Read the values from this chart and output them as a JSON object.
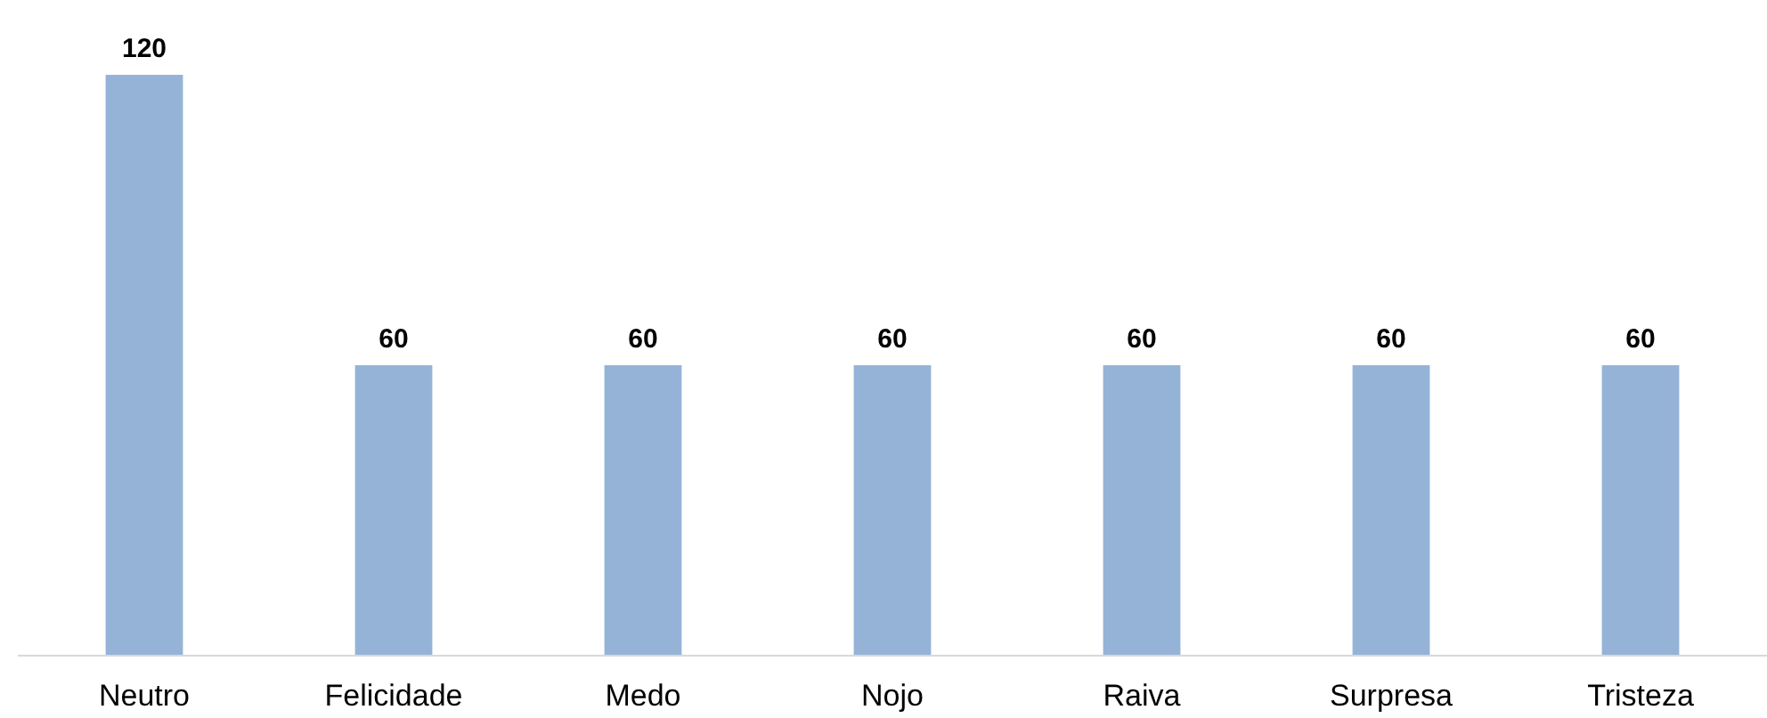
{
  "chart_data": {
    "type": "bar",
    "categories": [
      "Neutro",
      "Felicidade",
      "Medo",
      "Nojo",
      "Raiva",
      "Surpresa",
      "Tristeza"
    ],
    "values": [
      120,
      60,
      60,
      60,
      60,
      60,
      60
    ],
    "color": "#95b3d7",
    "data_labels": true
  }
}
